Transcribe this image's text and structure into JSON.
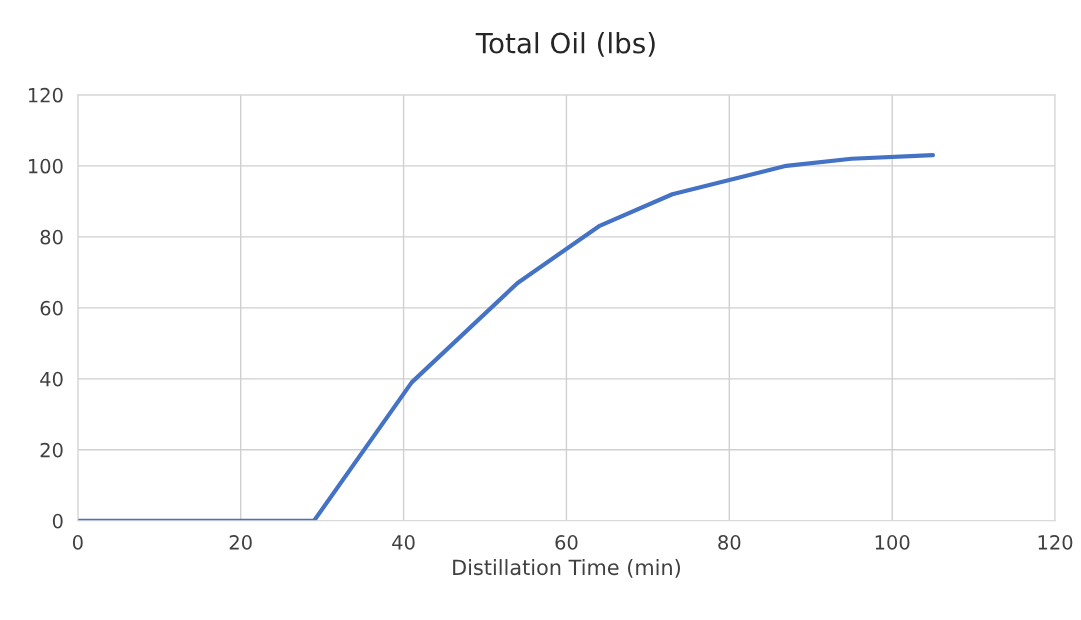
{
  "chart_data": {
    "type": "line",
    "title": "Total Oil (lbs)",
    "xlabel": "Distillation Time (min)",
    "x": [
      0,
      29,
      41,
      54,
      64,
      73,
      87,
      95,
      105
    ],
    "series": [
      {
        "color": "#4472c4",
        "values": [
          0,
          0,
          39,
          67,
          83,
          92,
          100,
          102,
          103
        ]
      }
    ],
    "xlim": [
      0,
      120
    ],
    "xticks": [
      0,
      20,
      40,
      60,
      80,
      100,
      120
    ],
    "ylim": [
      0,
      120
    ],
    "yticks": [
      0,
      20,
      40,
      60,
      80,
      100,
      120
    ],
    "grid": true,
    "marker": "none",
    "line_style": "solid"
  }
}
